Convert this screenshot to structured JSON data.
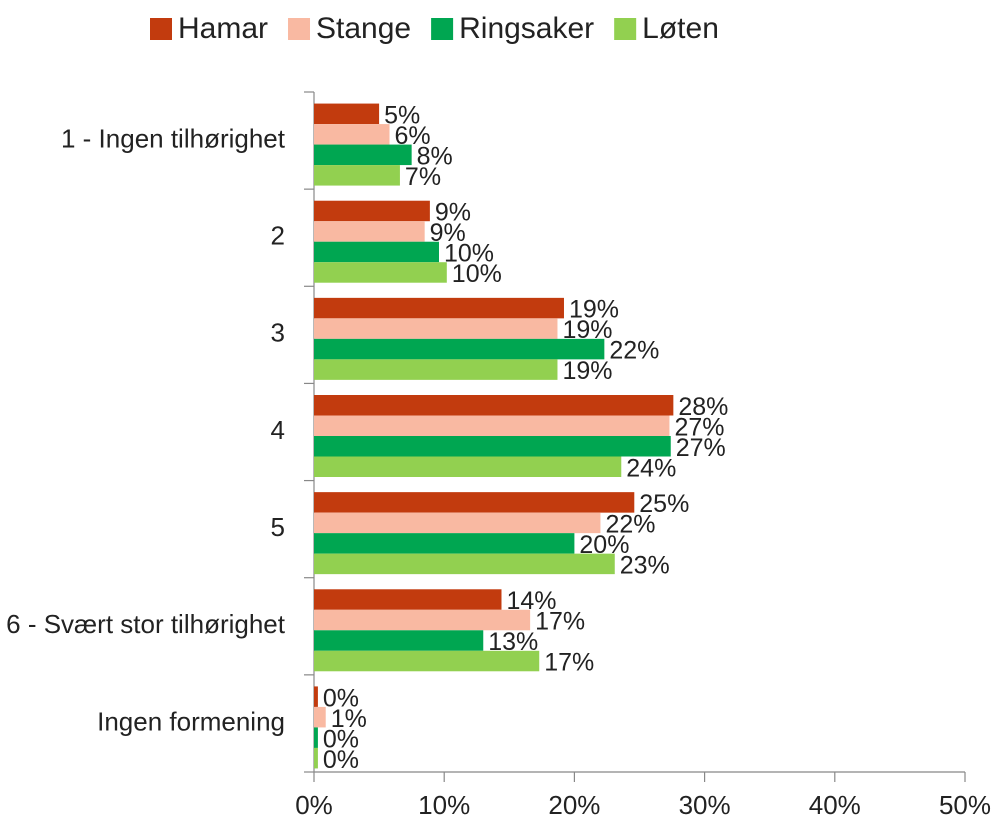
{
  "chart_data": {
    "type": "hbar",
    "categories": [
      "1 - Ingen tilhørighet",
      "2",
      "3",
      "4",
      "5",
      "6 - Svært stor tilhørighet",
      "Ingen formening"
    ],
    "series": [
      {
        "name": "Hamar",
        "color": "#c23b0e",
        "values": [
          5.0,
          8.9,
          19.2,
          27.6,
          24.6,
          14.4,
          0.3
        ],
        "value_labels": [
          "5%",
          "9%",
          "19%",
          "28%",
          "25%",
          "14%",
          "0%"
        ]
      },
      {
        "name": "Stange",
        "color": "#f9b9a2",
        "values": [
          5.8,
          8.5,
          18.7,
          27.3,
          22.0,
          16.6,
          0.9
        ],
        "value_labels": [
          "6%",
          "9%",
          "19%",
          "27%",
          "22%",
          "17%",
          "1%"
        ]
      },
      {
        "name": "Ringsaker",
        "color": "#00a651",
        "values": [
          7.5,
          9.6,
          22.3,
          27.4,
          20.0,
          13.0,
          0.3
        ],
        "value_labels": [
          "8%",
          "10%",
          "22%",
          "27%",
          "20%",
          "13%",
          "0%"
        ]
      },
      {
        "name": "Løten",
        "color": "#92d050",
        "values": [
          6.6,
          10.2,
          18.7,
          23.6,
          23.1,
          17.3,
          0.3
        ],
        "value_labels": [
          "7%",
          "10%",
          "19%",
          "24%",
          "23%",
          "17%",
          "0%"
        ]
      }
    ],
    "xlim": [
      0,
      50
    ],
    "xticks": [
      {
        "value": 0,
        "label": "0%"
      },
      {
        "value": 10,
        "label": "10%"
      },
      {
        "value": 20,
        "label": "20%"
      },
      {
        "value": 30,
        "label": "30%"
      },
      {
        "value": 40,
        "label": "40%"
      },
      {
        "value": 50,
        "label": "50%"
      }
    ],
    "legend": "top"
  }
}
